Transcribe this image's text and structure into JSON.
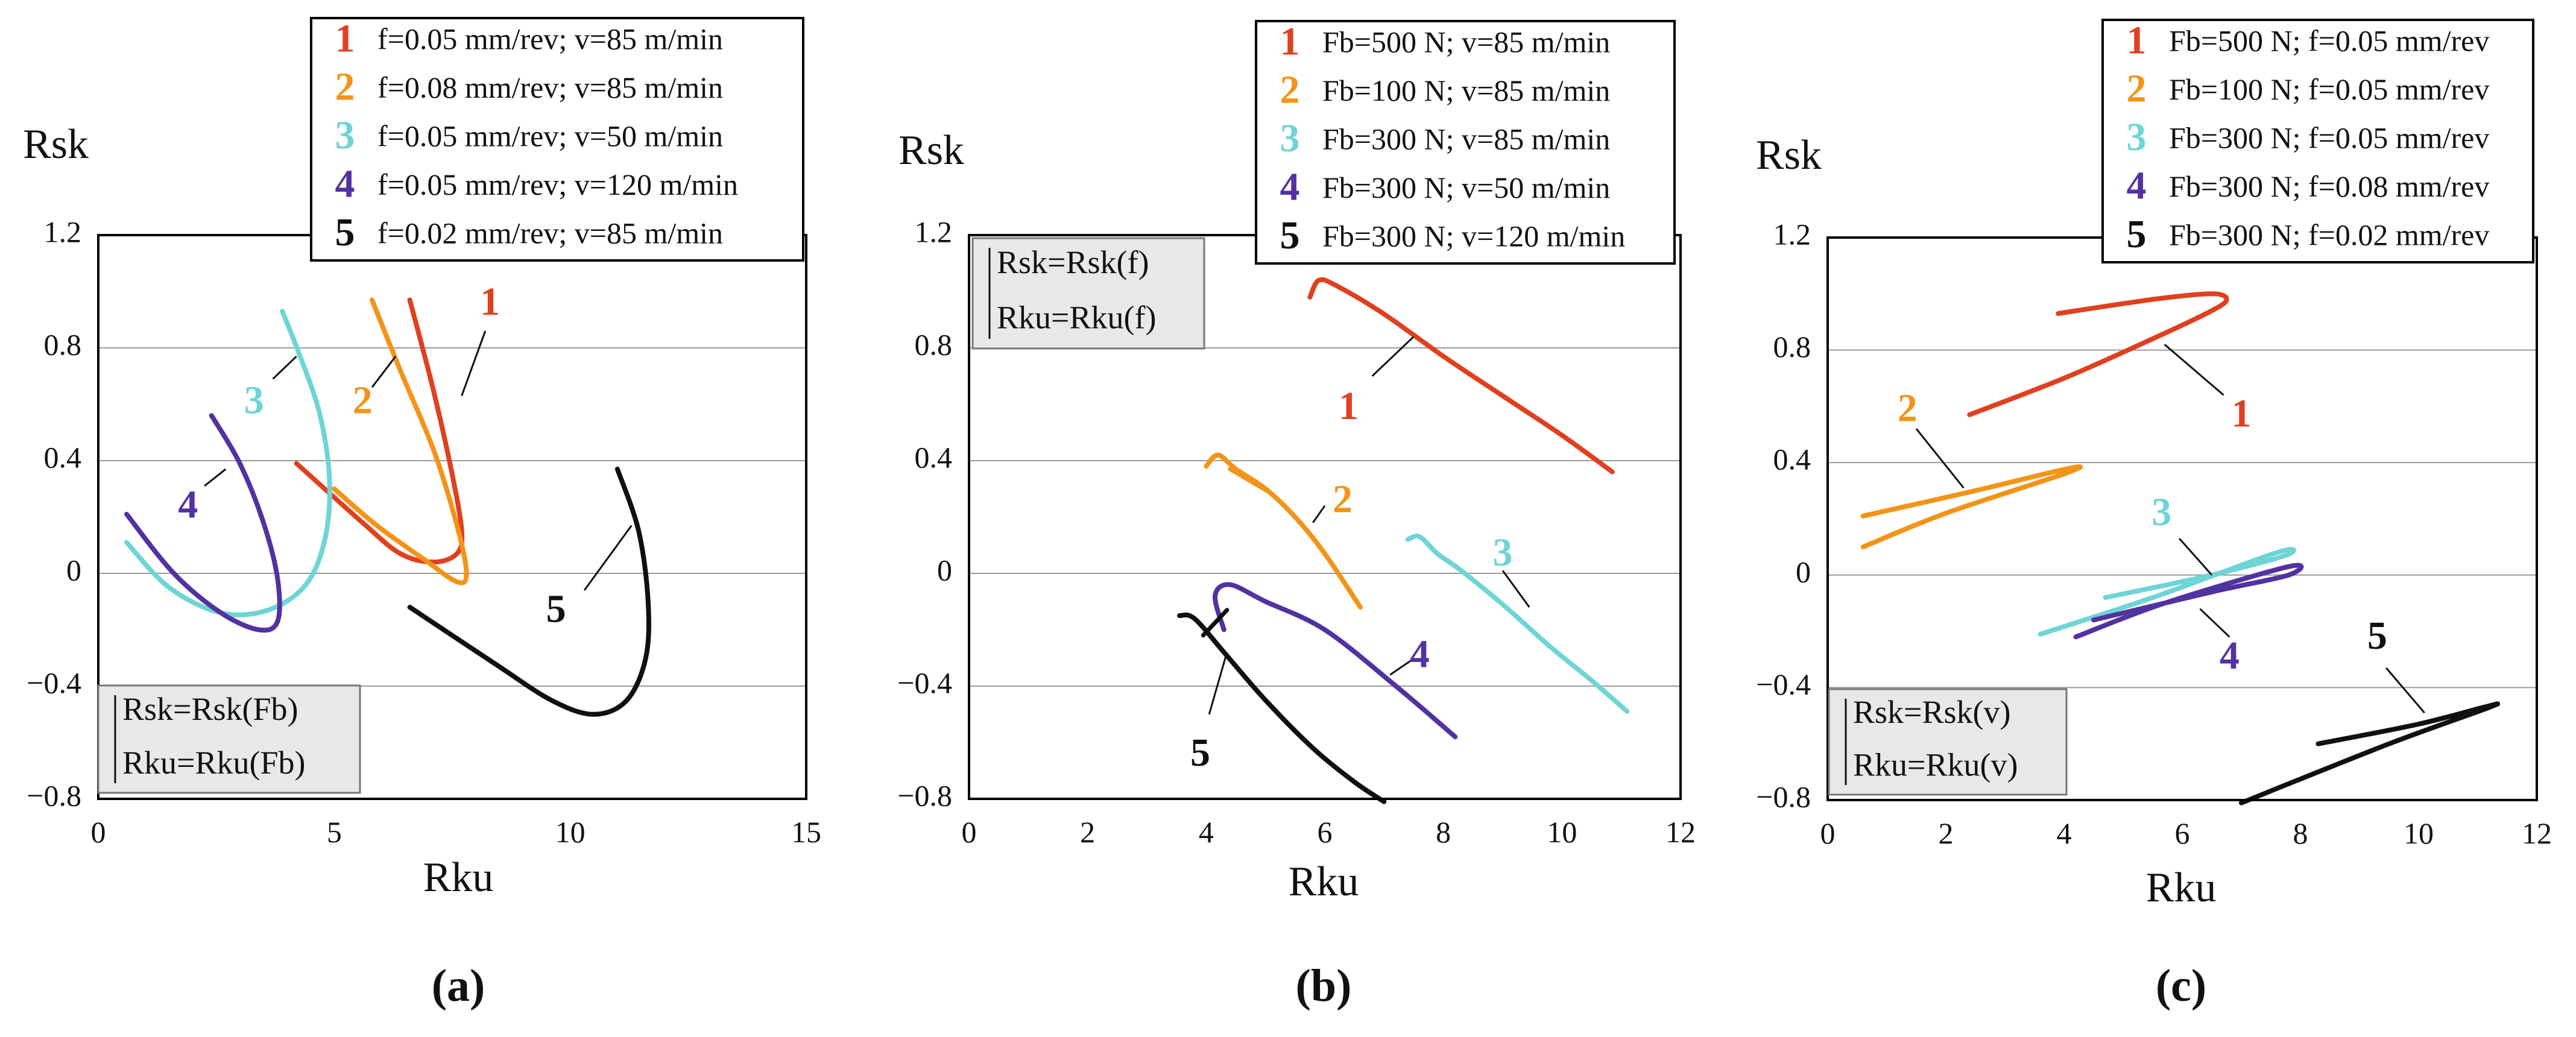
{
  "figure": {
    "background": "#ffffff",
    "grid_color": "#9a9a9a"
  },
  "chart_data": [
    {
      "type": "line",
      "panel_label": "(a)",
      "xlabel": "Rku",
      "ylabel": "Rsk",
      "xlim": [
        0,
        15
      ],
      "ylim": [
        -0.8,
        1.2
      ],
      "xticks": [
        0,
        5,
        10,
        15
      ],
      "xtick_labels": [
        "0",
        "5",
        "10",
        "15"
      ],
      "yticks": [
        1.2,
        0.8,
        0.4,
        0,
        -0.4,
        -0.8
      ],
      "ytick_labels": [
        "1.2",
        "0.8",
        "0.4",
        "0",
        "−0.4",
        "−0.8"
      ],
      "grid": true,
      "legend_position": "top",
      "dependency_box": {
        "position": "bottom-left",
        "lines": [
          "Rsk=Rsk(Fb)",
          "Rku=Rku(Fb)"
        ]
      },
      "series": [
        {
          "id": "1",
          "name": "f=0.05 mm/rev; v=85 m/min",
          "color": "#e0401f",
          "x": [
            6.6,
            7.1,
            7.5,
            7.7,
            7.6,
            7.1,
            6.4,
            5.6,
            4.2
          ],
          "y": [
            0.97,
            0.65,
            0.35,
            0.15,
            0.07,
            0.04,
            0.07,
            0.18,
            0.39
          ],
          "label_at": [
            8.3,
            0.95
          ],
          "leader": [
            [
              8.2,
              0.86
            ],
            [
              7.7,
              0.63
            ]
          ]
        },
        {
          "id": "2",
          "name": "f=0.08 mm/rev; v=85 m/min",
          "color": "#f39418",
          "x": [
            5.8,
            6.4,
            7.1,
            7.6,
            7.8,
            7.6,
            6.9,
            5.9,
            5.0
          ],
          "y": [
            0.97,
            0.72,
            0.44,
            0.17,
            0.0,
            -0.03,
            0.05,
            0.17,
            0.3
          ],
          "label_at": [
            5.6,
            0.6
          ],
          "leader": [
            [
              6.3,
              0.77
            ],
            [
              5.8,
              0.66
            ]
          ]
        },
        {
          "id": "3",
          "name": "f=0.05 mm/rev; v=50 m/min",
          "color": "#6ed4d6",
          "x": [
            3.9,
            4.3,
            4.7,
            4.9,
            4.8,
            4.4,
            3.6,
            2.6,
            1.5,
            0.6
          ],
          "y": [
            0.93,
            0.76,
            0.56,
            0.33,
            0.12,
            -0.04,
            -0.13,
            -0.14,
            -0.05,
            0.11
          ],
          "label_at": [
            3.3,
            0.6
          ],
          "leader": [
            [
              4.2,
              0.77
            ],
            [
              3.7,
              0.69
            ]
          ]
        },
        {
          "id": "4",
          "name": "f=0.05 mm/rev; v=120 m/min",
          "color": "#5232a0",
          "x": [
            2.4,
            3.0,
            3.5,
            3.8,
            3.8,
            3.4,
            2.6,
            1.6,
            0.6
          ],
          "y": [
            0.56,
            0.39,
            0.18,
            -0.02,
            -0.17,
            -0.2,
            -0.14,
            0.0,
            0.21
          ],
          "label_at": [
            1.9,
            0.23
          ],
          "leader": [
            [
              2.7,
              0.37
            ],
            [
              2.25,
              0.31
            ]
          ]
        },
        {
          "id": "5",
          "name": "f=0.02 mm/rev; v=85 m/min",
          "color": "#101010",
          "x": [
            11.0,
            11.45,
            11.65,
            11.6,
            11.2,
            10.5,
            9.6,
            8.4,
            6.6
          ],
          "y": [
            0.37,
            0.15,
            -0.1,
            -0.3,
            -0.45,
            -0.5,
            -0.45,
            -0.32,
            -0.12
          ],
          "label_at": [
            9.7,
            -0.14
          ],
          "leader": [
            [
              11.3,
              0.17
            ],
            [
              10.3,
              -0.06
            ]
          ]
        }
      ]
    },
    {
      "type": "line",
      "panel_label": "(b)",
      "xlabel": "Rku",
      "ylabel": "Rsk",
      "xlim": [
        0,
        12
      ],
      "ylim": [
        -0.8,
        1.2
      ],
      "xticks": [
        0,
        2,
        4,
        6,
        8,
        10,
        12
      ],
      "xtick_labels": [
        "0",
        "2",
        "4",
        "6",
        "8",
        "10",
        "12"
      ],
      "yticks": [
        1.2,
        0.8,
        0.4,
        0,
        -0.4,
        -0.8
      ],
      "ytick_labels": [
        "1.2",
        "0.8",
        "0.4",
        "0",
        "−0.4",
        "−0.8"
      ],
      "grid": true,
      "legend_position": "top-right",
      "dependency_box": {
        "position": "top-left",
        "lines": [
          "Rsk=Rsk(f)",
          "Rku=Rku(f)"
        ]
      },
      "series": [
        {
          "id": "1",
          "name": "Fb=500 N; v=85 m/min",
          "color": "#e0401f",
          "x": [
            5.75,
            5.9,
            6.2,
            7.0,
            8.0,
            9.0,
            10.0,
            10.85
          ],
          "y": [
            0.98,
            1.04,
            1.02,
            0.92,
            0.77,
            0.63,
            0.49,
            0.36
          ],
          "label_at": [
            6.4,
            0.58
          ],
          "leader": [
            [
              7.5,
              0.84
            ],
            [
              6.8,
              0.7
            ]
          ]
        },
        {
          "id": "2",
          "name": "Fb=100 N; v=85 m/min",
          "color": "#f39418",
          "x": [
            4.0,
            4.2,
            4.5,
            5.0,
            5.5,
            6.0,
            6.6
          ],
          "y": [
            0.38,
            0.42,
            0.37,
            0.3,
            0.2,
            0.07,
            -0.12
          ],
          "extra": {
            "x": [
              4.4,
              5.05
            ],
            "y": [
              0.37,
              0.29
            ]
          },
          "label_at": [
            6.3,
            0.25
          ],
          "leader": [
            [
              6.0,
              0.24
            ],
            [
              5.8,
              0.18
            ]
          ]
        },
        {
          "id": "3",
          "name": "Fb=300 N; v=85 m/min",
          "color": "#6ed4d6",
          "x": [
            7.4,
            7.6,
            7.9,
            8.3,
            9.0,
            9.8,
            10.5,
            11.1
          ],
          "y": [
            0.12,
            0.13,
            0.07,
            0.01,
            -0.11,
            -0.26,
            -0.38,
            -0.49
          ],
          "label_at": [
            9.0,
            0.06
          ],
          "leader": [
            [
              9.0,
              0.01
            ],
            [
              9.45,
              -0.12
            ]
          ]
        },
        {
          "id": "4",
          "name": "Fb=300 N; v=50 m/min",
          "color": "#5232a0",
          "x": [
            4.3,
            4.15,
            4.4,
            5.0,
            6.0,
            7.2,
            8.2
          ],
          "y": [
            -0.2,
            -0.08,
            -0.04,
            -0.1,
            -0.2,
            -0.4,
            -0.58
          ],
          "label_at": [
            7.6,
            -0.3
          ],
          "leader": [
            [
              7.1,
              -0.36
            ],
            [
              7.45,
              -0.31
            ]
          ]
        },
        {
          "id": "5",
          "name": "Fb=300 N; v=120 m/min",
          "color": "#101010",
          "x": [
            3.55,
            3.8,
            4.3,
            5.0,
            5.8,
            6.5,
            7.0
          ],
          "y": [
            -0.15,
            -0.16,
            -0.28,
            -0.45,
            -0.62,
            -0.74,
            -0.81
          ],
          "extra": {
            "x": [
              3.95,
              4.35
            ],
            "y": [
              -0.22,
              -0.13
            ]
          },
          "label_at": [
            3.9,
            -0.65
          ],
          "leader": [
            [
              4.05,
              -0.5
            ],
            [
              4.35,
              -0.28
            ]
          ]
        }
      ]
    },
    {
      "type": "line",
      "panel_label": "(c)",
      "xlabel": "Rku",
      "ylabel": "Rsk",
      "xlim": [
        0,
        12
      ],
      "ylim": [
        -0.8,
        1.2
      ],
      "xticks": [
        0,
        2,
        4,
        6,
        8,
        10,
        12
      ],
      "xtick_labels": [
        "0",
        "2",
        "4",
        "6",
        "8",
        "10",
        "12"
      ],
      "yticks": [
        1.2,
        0.8,
        0.4,
        0,
        -0.4,
        -0.8
      ],
      "ytick_labels": [
        "1.2",
        "0.8",
        "0.4",
        "0",
        "−0.4",
        "−0.8"
      ],
      "grid": true,
      "legend_position": "top-right",
      "dependency_box": {
        "position": "bottom-left",
        "lines": [
          "Rsk=Rsk(v)",
          "Rku=Rku(v)"
        ]
      },
      "series": [
        {
          "id": "1",
          "name": "Fb=500 N; f=0.05 mm/rev",
          "color": "#e0401f",
          "x": [
            3.9,
            5.5,
            6.5,
            6.75,
            6.5,
            5.5,
            4.0,
            2.4
          ],
          "y": [
            0.93,
            0.98,
            1.0,
            0.98,
            0.94,
            0.84,
            0.7,
            0.57
          ],
          "label_at": [
            7.0,
            0.56
          ],
          "leader": [
            [
              5.7,
              0.82
            ],
            [
              6.7,
              0.64
            ]
          ]
        },
        {
          "id": "2",
          "name": "Fb=100 N; f=0.05 mm/rev",
          "color": "#f39418",
          "x": [
            0.6,
            2.5,
            4.1,
            4.0,
            2.0,
            0.6
          ],
          "y": [
            0.21,
            0.3,
            0.38,
            0.36,
            0.22,
            0.1
          ],
          "label_at": [
            1.35,
            0.58
          ],
          "leader": [
            [
              1.5,
              0.52
            ],
            [
              2.3,
              0.31
            ]
          ]
        },
        {
          "id": "3",
          "name": "Fb=300 N; f=0.05 mm/rev",
          "color": "#6ed4d6",
          "x": [
            4.7,
            6.5,
            7.75,
            7.6,
            5.5,
            3.6
          ],
          "y": [
            -0.08,
            0.0,
            0.07,
            0.08,
            -0.08,
            -0.21
          ],
          "label_at": [
            5.65,
            0.21
          ],
          "leader": [
            [
              5.95,
              0.13
            ],
            [
              6.5,
              0.0
            ]
          ]
        },
        {
          "id": "4",
          "name": "Fb=300 N; f=0.08 mm/rev",
          "color": "#5232a0",
          "x": [
            4.5,
            6.5,
            7.8,
            7.8,
            5.7,
            4.2
          ],
          "y": [
            -0.16,
            -0.06,
            0.0,
            0.03,
            -0.1,
            -0.22
          ],
          "label_at": [
            6.8,
            -0.3
          ],
          "leader": [
            [
              6.3,
              -0.12
            ],
            [
              6.8,
              -0.22
            ]
          ]
        },
        {
          "id": "5",
          "name": "Fb=300 N; f=0.02 mm/rev",
          "color": "#101010",
          "x": [
            8.3,
            10.0,
            11.1,
            11.2,
            9.5,
            7.0
          ],
          "y": [
            -0.6,
            -0.53,
            -0.47,
            -0.47,
            -0.6,
            -0.81
          ],
          "label_at": [
            9.3,
            -0.23
          ],
          "leader": [
            [
              9.45,
              -0.33
            ],
            [
              10.1,
              -0.49
            ]
          ]
        }
      ]
    }
  ]
}
